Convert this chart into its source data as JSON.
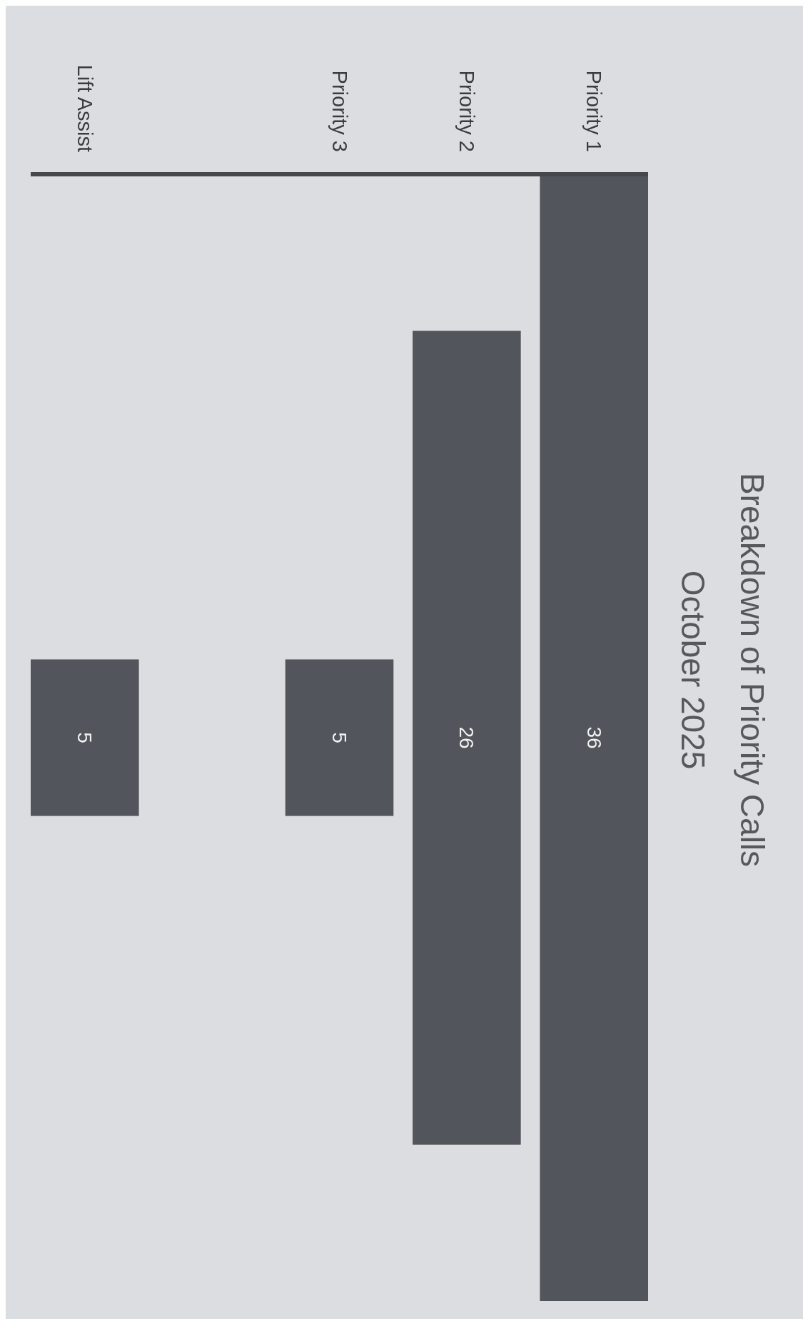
{
  "chart_data": {
    "type": "other",
    "title": "Breakdown of Priority Calls",
    "subtitle": "October 2025",
    "categories": [
      "Priority 1",
      "Priority 2",
      "Priority 3",
      null,
      "Lift Assist"
    ],
    "values": [
      36,
      26,
      5,
      null,
      5
    ],
    "color": "#52565c",
    "data_labels": true
  }
}
